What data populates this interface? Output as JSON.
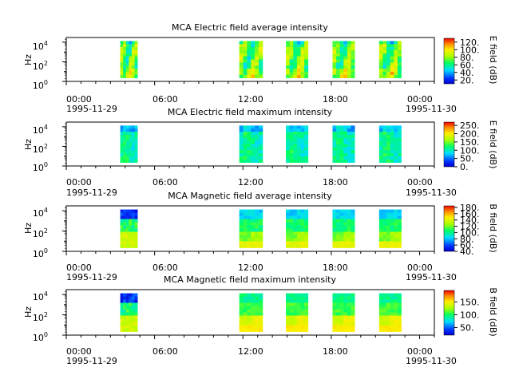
{
  "figure": {
    "x_ticks": [
      "00:00",
      "06:00",
      "12:00",
      "18:00",
      "00:00"
    ],
    "date_start": "1995-11-29",
    "date_end": "1995-11-30"
  },
  "chart_data": [
    {
      "type": "heatmap",
      "title": "MCA  Electric field average intensity",
      "ylabel": "Hz",
      "y_scale": "log",
      "ylim": [
        1,
        30000
      ],
      "y_ticks": [
        "10",
        "10",
        "10"
      ],
      "y_exps": [
        "0",
        "2",
        "4"
      ],
      "x_range": [
        "1995-11-29T00:00",
        "1995-11-30T01:00"
      ],
      "colorbar": {
        "label": "E field (dB)",
        "range": [
          10,
          130
        ],
        "ticks": [
          "20.",
          "40.",
          "60.",
          "80.",
          "100.",
          "120."
        ],
        "tick_values": [
          20,
          40,
          60,
          80,
          100,
          120
        ]
      },
      "data_blocks": [
        {
          "start": "03:40",
          "end": "04:50",
          "style": "patchy-high"
        },
        {
          "start": "11:45",
          "end": "13:20",
          "style": "patchy-high"
        },
        {
          "start": "14:55",
          "end": "16:25",
          "style": "patchy-high"
        },
        {
          "start": "18:05",
          "end": "19:35",
          "style": "patchy-high"
        },
        {
          "start": "21:15",
          "end": "22:45",
          "style": "patchy-high"
        }
      ]
    },
    {
      "type": "heatmap",
      "title": "MCA  Electric field maximum intensity",
      "ylabel": "Hz",
      "y_scale": "log",
      "ylim": [
        1,
        30000
      ],
      "y_ticks": [
        "10",
        "10",
        "10"
      ],
      "y_exps": [
        "0",
        "2",
        "4"
      ],
      "x_range": [
        "1995-11-29T00:00",
        "1995-11-30T01:00"
      ],
      "colorbar": {
        "label": "E field (dB)",
        "range": [
          0,
          270
        ],
        "ticks": [
          "0.",
          "50.",
          "100.",
          "150.",
          "200.",
          "250."
        ],
        "tick_values": [
          0,
          50,
          100,
          150,
          200,
          250
        ]
      },
      "data_blocks": [
        {
          "start": "03:40",
          "end": "04:50",
          "style": "patchy-low"
        },
        {
          "start": "11:45",
          "end": "13:20",
          "style": "patchy-low"
        },
        {
          "start": "14:55",
          "end": "16:25",
          "style": "patchy-low"
        },
        {
          "start": "18:05",
          "end": "19:35",
          "style": "patchy-low"
        },
        {
          "start": "21:15",
          "end": "22:45",
          "style": "patchy-low"
        }
      ]
    },
    {
      "type": "heatmap",
      "title": "MCA  Magnetic field average intensity",
      "ylabel": "Hz",
      "y_scale": "log",
      "ylim": [
        1,
        30000
      ],
      "y_ticks": [
        "10",
        "10",
        "10"
      ],
      "y_exps": [
        "0",
        "2",
        "4"
      ],
      "x_range": [
        "1995-11-29T00:00",
        "1995-11-30T01:00"
      ],
      "colorbar": {
        "label": "B field (dB)",
        "range": [
          40,
          185
        ],
        "ticks": [
          "40.",
          "60.",
          "80.",
          "100.",
          "120.",
          "140.",
          "160.",
          "180."
        ],
        "tick_values": [
          40,
          60,
          80,
          100,
          120,
          140,
          160,
          180
        ]
      },
      "data_blocks": [
        {
          "start": "03:40",
          "end": "04:50",
          "style": "banded-low-top"
        },
        {
          "start": "11:45",
          "end": "13:20",
          "style": "banded"
        },
        {
          "start": "14:55",
          "end": "16:25",
          "style": "banded"
        },
        {
          "start": "18:05",
          "end": "19:35",
          "style": "banded"
        },
        {
          "start": "21:15",
          "end": "22:45",
          "style": "banded"
        }
      ]
    },
    {
      "type": "heatmap",
      "title": "MCA  Magnetic field maximum intensity",
      "ylabel": "Hz",
      "y_scale": "log",
      "ylim": [
        1,
        30000
      ],
      "y_ticks": [
        "10",
        "10",
        "10"
      ],
      "y_exps": [
        "0",
        "2",
        "4"
      ],
      "x_range": [
        "1995-11-29T00:00",
        "1995-11-30T01:00"
      ],
      "colorbar": {
        "label": "B field (dB)",
        "range": [
          20,
          195
        ],
        "ticks": [
          "50.",
          "100.",
          "150."
        ],
        "tick_values": [
          50,
          100,
          150
        ]
      },
      "data_blocks": [
        {
          "start": "03:40",
          "end": "04:50",
          "style": "banded-low-top"
        },
        {
          "start": "11:45",
          "end": "13:20",
          "style": "banded-hot"
        },
        {
          "start": "14:55",
          "end": "16:25",
          "style": "banded-hot"
        },
        {
          "start": "18:05",
          "end": "19:35",
          "style": "banded-hot"
        },
        {
          "start": "21:15",
          "end": "22:45",
          "style": "banded-hot"
        }
      ]
    }
  ]
}
